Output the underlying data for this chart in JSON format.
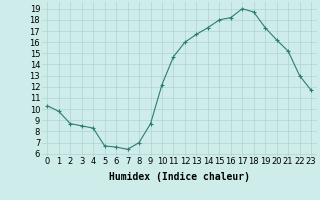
{
  "x": [
    0,
    1,
    2,
    3,
    4,
    5,
    6,
    7,
    8,
    9,
    10,
    11,
    12,
    13,
    14,
    15,
    16,
    17,
    18,
    19,
    20,
    21,
    22,
    23
  ],
  "y": [
    10.3,
    9.8,
    8.7,
    8.5,
    8.3,
    6.7,
    6.6,
    6.4,
    7.0,
    8.7,
    12.2,
    14.7,
    16.0,
    16.7,
    17.3,
    18.0,
    18.2,
    19.0,
    18.7,
    17.3,
    16.2,
    15.2,
    13.0,
    11.7
  ],
  "line_color": "#2d7d6f",
  "marker": "+",
  "marker_size": 3,
  "marker_linewidth": 0.8,
  "line_width": 0.8,
  "bg_color": "#cdecea",
  "grid_color": "#b0d4d0",
  "xlabel": "Humidex (Indice chaleur)",
  "ylabel_ticks": [
    6,
    7,
    8,
    9,
    10,
    11,
    12,
    13,
    14,
    15,
    16,
    17,
    18,
    19
  ],
  "ylim": [
    5.8,
    19.6
  ],
  "xlim": [
    -0.5,
    23.5
  ],
  "label_fontsize": 7,
  "tick_fontsize": 6
}
